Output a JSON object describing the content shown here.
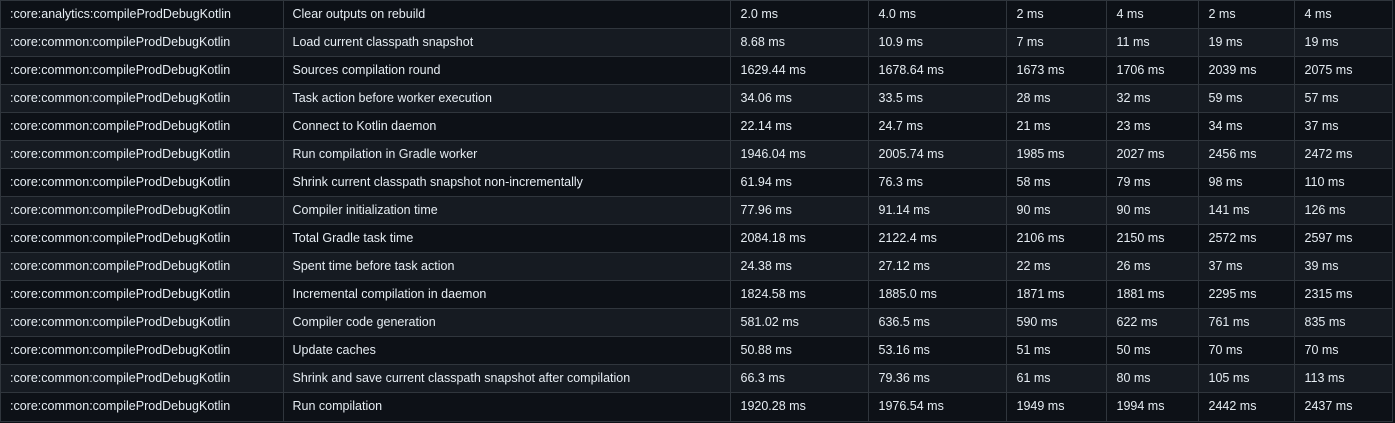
{
  "rows": [
    {
      "task": ":core:analytics:compileProdDebugKotlin",
      "metric": "Clear outputs on rebuild",
      "v1": "2.0 ms",
      "v2": "4.0 ms",
      "v3": "2 ms",
      "v4": "4 ms",
      "v5": "2 ms",
      "v6": "4 ms"
    },
    {
      "task": ":core:common:compileProdDebugKotlin",
      "metric": "Load current classpath snapshot",
      "v1": "8.68 ms",
      "v2": "10.9 ms",
      "v3": "7 ms",
      "v4": "11 ms",
      "v5": "19 ms",
      "v6": "19 ms"
    },
    {
      "task": ":core:common:compileProdDebugKotlin",
      "metric": "Sources compilation round",
      "v1": "1629.44 ms",
      "v2": "1678.64 ms",
      "v3": "1673 ms",
      "v4": "1706 ms",
      "v5": "2039 ms",
      "v6": "2075 ms"
    },
    {
      "task": ":core:common:compileProdDebugKotlin",
      "metric": "Task action before worker execution",
      "v1": "34.06 ms",
      "v2": "33.5 ms",
      "v3": "28 ms",
      "v4": "32 ms",
      "v5": "59 ms",
      "v6": "57 ms"
    },
    {
      "task": ":core:common:compileProdDebugKotlin",
      "metric": "Connect to Kotlin daemon",
      "v1": "22.14 ms",
      "v2": "24.7 ms",
      "v3": "21 ms",
      "v4": "23 ms",
      "v5": "34 ms",
      "v6": "37 ms"
    },
    {
      "task": ":core:common:compileProdDebugKotlin",
      "metric": "Run compilation in Gradle worker",
      "v1": "1946.04 ms",
      "v2": "2005.74 ms",
      "v3": "1985 ms",
      "v4": "2027 ms",
      "v5": "2456 ms",
      "v6": "2472 ms"
    },
    {
      "task": ":core:common:compileProdDebugKotlin",
      "metric": "Shrink current classpath snapshot non-incrementally",
      "v1": "61.94 ms",
      "v2": "76.3 ms",
      "v3": "58 ms",
      "v4": "79 ms",
      "v5": "98 ms",
      "v6": "110 ms"
    },
    {
      "task": ":core:common:compileProdDebugKotlin",
      "metric": "Compiler initialization time",
      "v1": "77.96 ms",
      "v2": "91.14 ms",
      "v3": "90 ms",
      "v4": "90 ms",
      "v5": "141 ms",
      "v6": "126 ms"
    },
    {
      "task": ":core:common:compileProdDebugKotlin",
      "metric": "Total Gradle task time",
      "v1": "2084.18 ms",
      "v2": "2122.4 ms",
      "v3": "2106 ms",
      "v4": "2150 ms",
      "v5": "2572 ms",
      "v6": "2597 ms"
    },
    {
      "task": ":core:common:compileProdDebugKotlin",
      "metric": "Spent time before task action",
      "v1": "24.38 ms",
      "v2": "27.12 ms",
      "v3": "22 ms",
      "v4": "26 ms",
      "v5": "37 ms",
      "v6": "39 ms"
    },
    {
      "task": ":core:common:compileProdDebugKotlin",
      "metric": "Incremental compilation in daemon",
      "v1": "1824.58 ms",
      "v2": "1885.0 ms",
      "v3": "1871 ms",
      "v4": "1881 ms",
      "v5": "2295 ms",
      "v6": "2315 ms"
    },
    {
      "task": ":core:common:compileProdDebugKotlin",
      "metric": "Compiler code generation",
      "v1": "581.02 ms",
      "v2": "636.5 ms",
      "v3": "590 ms",
      "v4": "622 ms",
      "v5": "761 ms",
      "v6": "835 ms"
    },
    {
      "task": ":core:common:compileProdDebugKotlin",
      "metric": "Update caches",
      "v1": "50.88 ms",
      "v2": "53.16 ms",
      "v3": "51 ms",
      "v4": "50 ms",
      "v5": "70 ms",
      "v6": "70 ms"
    },
    {
      "task": ":core:common:compileProdDebugKotlin",
      "metric": "Shrink and save current classpath snapshot after compilation",
      "v1": "66.3 ms",
      "v2": "79.36 ms",
      "v3": "61 ms",
      "v4": "80 ms",
      "v5": "105 ms",
      "v6": "113 ms"
    },
    {
      "task": ":core:common:compileProdDebugKotlin",
      "metric": "Run compilation",
      "v1": "1920.28 ms",
      "v2": "1976.54 ms",
      "v3": "1949 ms",
      "v4": "1994 ms",
      "v5": "2442 ms",
      "v6": "2437 ms"
    }
  ]
}
